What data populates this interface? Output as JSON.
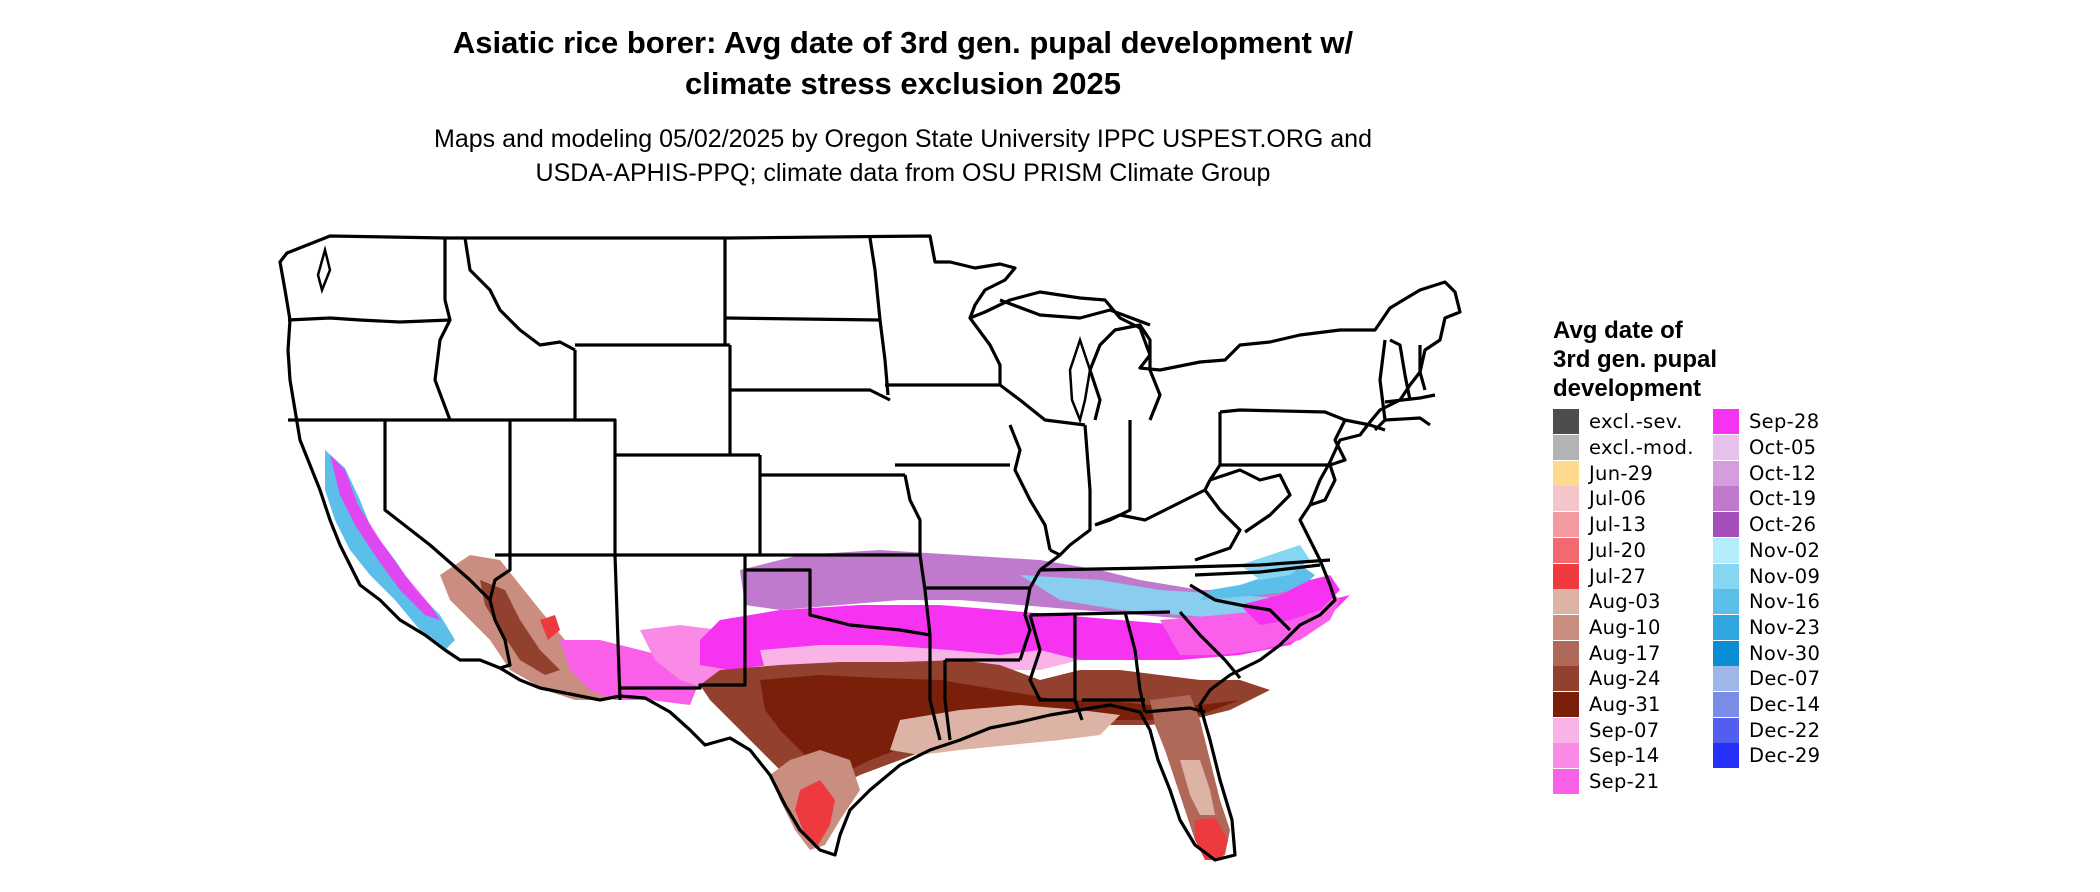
{
  "title": {
    "line1": "Asiatic rice borer: Avg date of 3rd gen. pupal development w/",
    "line2": "climate stress exclusion 2025"
  },
  "subtitle": {
    "line1": "Maps and modeling 05/02/2025 by Oregon State University IPPC USPEST.ORG and",
    "line2": "USDA-APHIS-PPQ; climate data from OSU PRISM Climate Group"
  },
  "legend": {
    "title_line1": "Avg date of",
    "title_line2": "3rd gen. pupal",
    "title_line3": "development",
    "items": [
      {
        "label": "excl.-sev.",
        "color": "#4d4d4d"
      },
      {
        "label": "excl.-mod.",
        "color": "#b3b3b3"
      },
      {
        "label": "Jun-29",
        "color": "#fed98e"
      },
      {
        "label": "Jul-06",
        "color": "#f4c6cb"
      },
      {
        "label": "Jul-13",
        "color": "#f29a9f"
      },
      {
        "label": "Jul-20",
        "color": "#f06a6f"
      },
      {
        "label": "Jul-27",
        "color": "#ee3a3f"
      },
      {
        "label": "Aug-03",
        "color": "#ddb3a6"
      },
      {
        "label": "Aug-10",
        "color": "#c98e7f"
      },
      {
        "label": "Aug-17",
        "color": "#b06858"
      },
      {
        "label": "Aug-24",
        "color": "#92412f"
      },
      {
        "label": "Aug-31",
        "color": "#7a1f0a"
      },
      {
        "label": "Sep-07",
        "color": "#f9b3e6"
      },
      {
        "label": "Sep-14",
        "color": "#f98be6"
      },
      {
        "label": "Sep-21",
        "color": "#f95fe9"
      },
      {
        "label": "Sep-28",
        "color": "#f733f2"
      },
      {
        "label": "Oct-05",
        "color": "#e6c1ec"
      },
      {
        "label": "Oct-12",
        "color": "#d49ddd"
      },
      {
        "label": "Oct-19",
        "color": "#bf79cd"
      },
      {
        "label": "Oct-26",
        "color": "#a64fbb"
      },
      {
        "label": "Nov-02",
        "color": "#b3ecfb"
      },
      {
        "label": "Nov-09",
        "color": "#85d6f3"
      },
      {
        "label": "Nov-16",
        "color": "#5bbfea"
      },
      {
        "label": "Nov-23",
        "color": "#30a6df"
      },
      {
        "label": "Nov-30",
        "color": "#0b8dd3"
      },
      {
        "label": "Dec-07",
        "color": "#9eb6e8"
      },
      {
        "label": "Dec-14",
        "color": "#7a8be8"
      },
      {
        "label": "Dec-22",
        "color": "#525ef0"
      },
      {
        "label": "Dec-29",
        "color": "#2630f7"
      }
    ]
  }
}
